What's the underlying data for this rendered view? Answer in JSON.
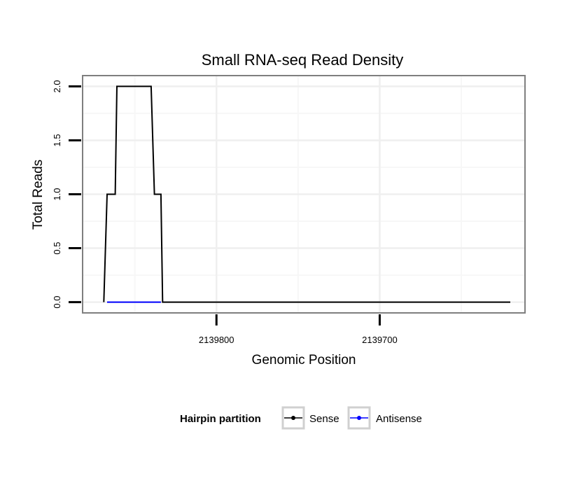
{
  "chart_data": {
    "type": "line",
    "title": "Small RNA-seq Read Density",
    "xlabel": "Genomic Position",
    "ylabel": "Total Reads",
    "xlim": [
      2139882,
      2139611
    ],
    "ylim": [
      -0.1,
      2.1
    ],
    "x_reversed": true,
    "x_ticks": [
      2139800,
      2139700
    ],
    "x_tick_labels": [
      "2139800",
      "2139700"
    ],
    "x_minor_grid": [
      2139850,
      2139750,
      2139650
    ],
    "y_ticks": [
      0.0,
      0.5,
      1.0,
      1.5,
      2.0
    ],
    "y_tick_labels": [
      "0.0",
      "0.5",
      "1.0",
      "1.5",
      "2.0"
    ],
    "y_minor_grid": [
      0.25,
      0.75,
      1.25,
      1.75
    ],
    "series": [
      {
        "name": "Sense",
        "color": "#000000",
        "points": [
          [
            2139869,
            0
          ],
          [
            2139867,
            1
          ],
          [
            2139862,
            1
          ],
          [
            2139861,
            2
          ],
          [
            2139840,
            2
          ],
          [
            2139838,
            1
          ],
          [
            2139834,
            1
          ],
          [
            2139833,
            0
          ],
          [
            2139620,
            0
          ]
        ]
      },
      {
        "name": "Antisense",
        "color": "#0000ff",
        "points": [
          [
            2139867,
            0
          ],
          [
            2139834,
            0
          ]
        ]
      }
    ],
    "legend": {
      "title": "Hairpin partition",
      "entries": [
        "Sense",
        "Antisense"
      ],
      "position": "bottom"
    }
  }
}
